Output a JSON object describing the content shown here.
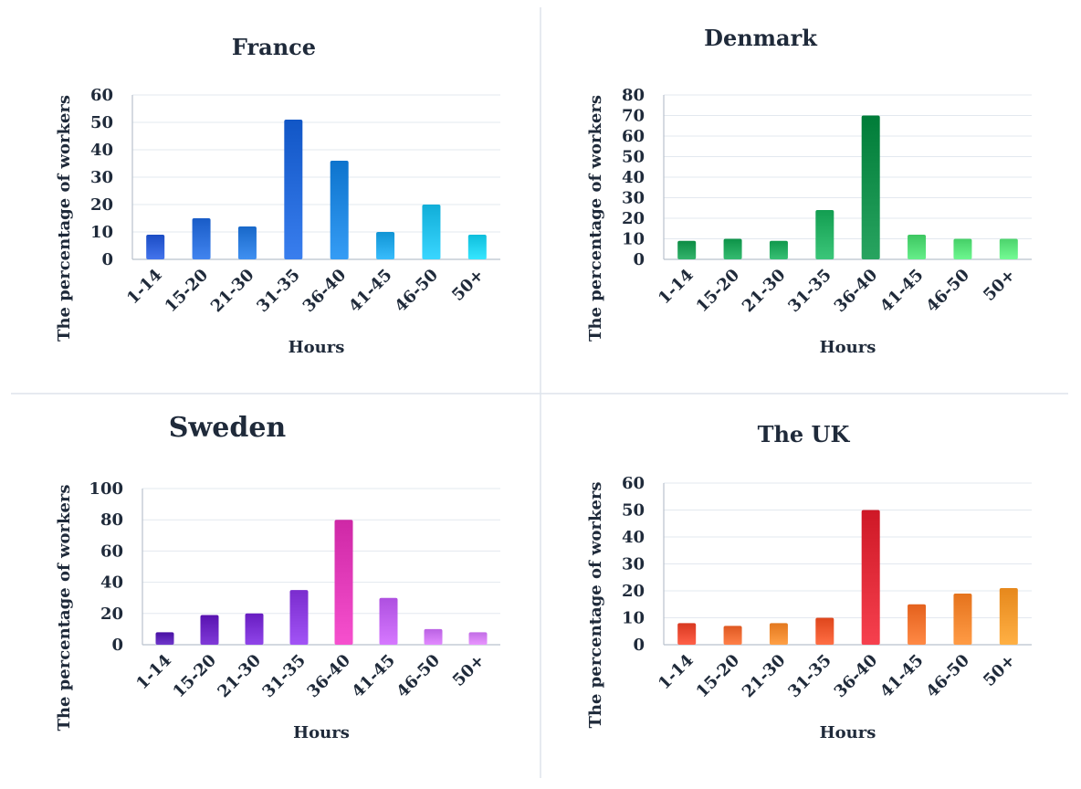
{
  "chart_data": [
    {
      "type": "bar",
      "title": "France",
      "xlabel": "Hours",
      "ylabel": "The percentage of workers",
      "categories": [
        "1-14",
        "15-20",
        "21-30",
        "31-35",
        "36-40",
        "41-45",
        "46-50",
        "50+"
      ],
      "values": [
        9,
        15,
        12,
        51,
        36,
        10,
        20,
        9
      ],
      "ylim": [
        0,
        60
      ],
      "yticks": [
        0,
        10,
        20,
        30,
        40,
        50,
        60
      ],
      "grid": true,
      "colors": [
        "#2d5ed6",
        "#2b6ed9",
        "#2a7adb",
        "#2368d8",
        "#1f86df",
        "#22a6e6",
        "#23c0ea",
        "#20d0ee"
      ]
    },
    {
      "type": "bar",
      "title": "Denmark",
      "xlabel": "Hours",
      "ylabel": "The percentage of workers",
      "categories": [
        "1-14",
        "15-20",
        "21-30",
        "31-35",
        "36-40",
        "41-45",
        "46-50",
        "50+"
      ],
      "values": [
        9,
        10,
        9,
        24,
        70,
        12,
        10,
        10
      ],
      "ylim": [
        0,
        80
      ],
      "yticks": [
        0,
        10,
        20,
        30,
        40,
        50,
        60,
        70,
        80
      ],
      "grid": true,
      "colors": [
        "#1e9e56",
        "#1fa55a",
        "#22aa5e",
        "#25b063",
        "#128e4a",
        "#4fd873",
        "#57e179",
        "#5ee57e"
      ]
    },
    {
      "type": "bar",
      "title": "Sweden",
      "xlabel": "Hours",
      "ylabel": "The percentage of workers",
      "categories": [
        "1-14",
        "15-20",
        "21-30",
        "31-35",
        "36-40",
        "41-45",
        "46-50",
        "50+"
      ],
      "values": [
        8,
        19,
        20,
        35,
        80,
        30,
        10,
        8
      ],
      "ylim": [
        0,
        100
      ],
      "yticks": [
        0,
        20,
        40,
        60,
        80,
        100
      ],
      "grid": true,
      "colors": [
        "#5a22b5",
        "#6a24c2",
        "#7a2fd3",
        "#8c3ee0",
        "#e03ab8",
        "#c062f2",
        "#cc74f5",
        "#d37ff7"
      ]
    },
    {
      "type": "bar",
      "title": "The UK",
      "xlabel": "Hours",
      "ylabel": "The percentage of workers",
      "categories": [
        "1-14",
        "15-20",
        "21-30",
        "31-35",
        "36-40",
        "41-45",
        "46-50",
        "50+"
      ],
      "values": [
        8,
        7,
        8,
        10,
        50,
        15,
        19,
        21
      ],
      "ylim": [
        0,
        60
      ],
      "yticks": [
        0,
        10,
        20,
        30,
        40,
        50,
        60
      ],
      "grid": true,
      "colors": [
        "#ea4a32",
        "#f06a33",
        "#f58a30",
        "#f0582e",
        "#e02a38",
        "#f6732f",
        "#f7852f",
        "#f89a2e"
      ]
    }
  ]
}
